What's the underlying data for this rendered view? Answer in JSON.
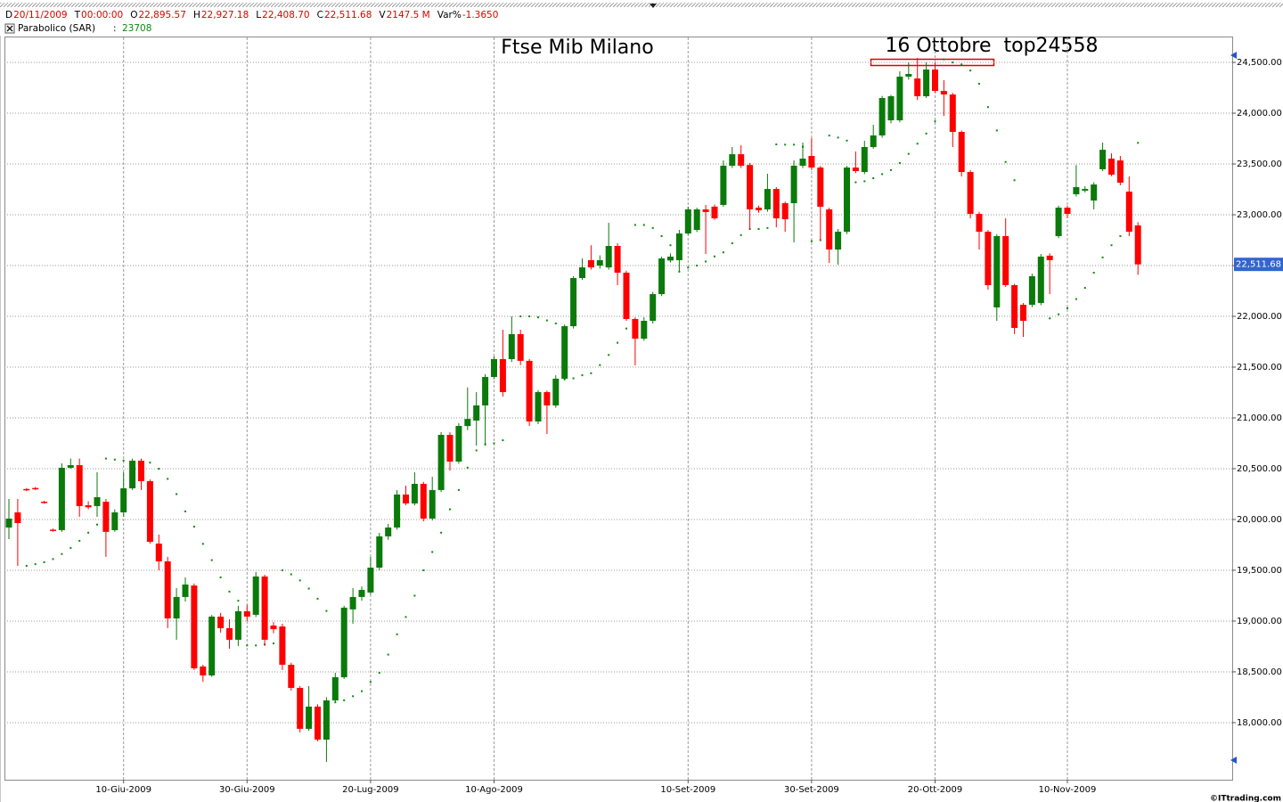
{
  "chart_data": {
    "type": "candlestick",
    "title": "Ftse Mib Milano",
    "annotation": "16 Ottobre  top24558",
    "header": [
      {
        "label": "D",
        "value": "20/11/2009"
      },
      {
        "label": "T",
        "value": "00:00:00"
      },
      {
        "label": "O",
        "value": "22,895.57"
      },
      {
        "label": "H",
        "value": "22,927.18"
      },
      {
        "label": "L",
        "value": "22,408.70"
      },
      {
        "label": "C",
        "value": "22,511.68"
      },
      {
        "label": "V",
        "value": "2147.5 M"
      },
      {
        "label": "Var%",
        "value": "-1.3650"
      }
    ],
    "indicator_separator": ":",
    "copyright": "©ITtrading.com",
    "categories": [
      null,
      null,
      null,
      null,
      null,
      null,
      null,
      null,
      null,
      null,
      null,
      null,
      null,
      "10-Giu-2009",
      null,
      null,
      null,
      null,
      null,
      null,
      null,
      null,
      null,
      null,
      null,
      null,
      null,
      "30-Giu-2009",
      null,
      null,
      null,
      null,
      null,
      null,
      null,
      null,
      null,
      null,
      null,
      null,
      null,
      "20-Lug-2009",
      null,
      null,
      null,
      null,
      null,
      null,
      null,
      null,
      null,
      null,
      null,
      null,
      null,
      "10-Ago-2009",
      null,
      null,
      null,
      null,
      null,
      null,
      null,
      null,
      null,
      null,
      null,
      null,
      null,
      null,
      null,
      null,
      null,
      null,
      null,
      null,
      null,
      "10-Set-2009",
      null,
      null,
      null,
      null,
      null,
      null,
      null,
      null,
      null,
      null,
      null,
      null,
      null,
      "30-Set-2009",
      null,
      null,
      null,
      null,
      null,
      null,
      null,
      null,
      null,
      null,
      null,
      null,
      null,
      "20-Ott-2009",
      null,
      null,
      null,
      null,
      null,
      null,
      null,
      null,
      null,
      null,
      null,
      null,
      null,
      null,
      "10-Nov-2009",
      null,
      null,
      null,
      null,
      null,
      null,
      null,
      null
    ],
    "open": [
      19921,
      20070,
      20300,
      20310,
      20175,
      19900,
      19895,
      20509,
      20535,
      20140,
      20132,
      20175,
      19895,
      20070,
      20307,
      20579,
      20377,
      19763,
      19588,
      19026,
      19237,
      19350,
      18553,
      18465,
      19044,
      18930,
      18816,
      19097,
      19062,
      19439,
      18956,
      18947,
      18570,
      18342,
      17939,
      18158,
      17833,
      18219,
      18447,
      19115,
      19237,
      19281,
      19526,
      19834,
      19921,
      20246,
      20158,
      20351,
      20009,
      20290,
      20833,
      20570,
      20920,
      20974,
      21123,
      21403,
      21579,
      21579,
      21825,
      21562,
      20965,
      21254,
      21123,
      21386,
      21903,
      22377,
      22553,
      22500,
      22482,
      22693,
      22430,
      21974,
      21780,
      21956,
      22219,
      22550,
      22553,
      22816,
      22851,
      23053,
      23080,
      23097,
      23483,
      23596,
      23490,
      23070,
      23053,
      23254,
      23114,
      23114,
      23483,
      23579,
      23465,
      23053,
      22658,
      22833,
      23465,
      23421,
      23667,
      23781,
      23930,
      23930,
      24360,
      24342,
      24167,
      24430,
      24219,
      24184,
      23816,
      23421,
      23009,
      22833,
      22088,
      22790,
      22307,
      22114,
      22114,
      22132,
      22597,
      22790,
      23070,
      23202,
      23237,
      23140,
      23448,
      23553,
      23535,
      23228,
      22895.57
    ],
    "high": [
      20202,
      20202,
      20310,
      20320,
      20185,
      19910,
      20553,
      20600,
      20600,
      20180,
      20465,
      20202,
      20100,
      20465,
      20600,
      20600,
      20395,
      19851,
      19632,
      19325,
      19430,
      19370,
      18570,
      19060,
      19080,
      19018,
      19150,
      19160,
      19483,
      19456,
      18990,
      18974,
      18590,
      18360,
      18360,
      18180,
      18250,
      18491,
      19150,
      19325,
      19340,
      19632,
      19868,
      19956,
      20290,
      20333,
      20465,
      20370,
      20420,
      20860,
      20860,
      20947,
      21300,
      21254,
      21430,
      21605,
      21868,
      22000,
      21868,
      21580,
      21272,
      21270,
      21420,
      21920,
      22395,
      22570,
      22700,
      22600,
      22921,
      22720,
      22450,
      21990,
      21990,
      22240,
      22588,
      22620,
      22851,
      23080,
      23070,
      23097,
      23100,
      23535,
      23667,
      23684,
      23510,
      23090,
      23404,
      23272,
      23130,
      23535,
      23711,
      23754,
      23480,
      23070,
      22860,
      23480,
      23623,
      23728,
      23886,
      24170,
      24180,
      24412,
      24500,
      24544,
      24500,
      24500,
      24325,
      24200,
      23830,
      23440,
      23030,
      22850,
      22810,
      22965,
      22320,
      22130,
      22420,
      22614,
      22620,
      23090,
      23090,
      23490,
      23280,
      23320,
      23711,
      23605,
      23579,
      23377,
      22927.18
    ],
    "low": [
      19807,
      19544,
      20280,
      20290,
      20155,
      19880,
      19878,
      20500,
      20026,
      20100,
      20026,
      19632,
      19880,
      20026,
      20290,
      20290,
      19763,
      19500,
      18930,
      18816,
      19193,
      18518,
      18403,
      18450,
      18886,
      18728,
      18755,
      19000,
      19040,
      18755,
      18880,
      18518,
      18316,
      17904,
      17920,
      17816,
      17614,
      18200,
      18430,
      18974,
      19200,
      19260,
      19500,
      19800,
      19900,
      20140,
      20140,
      19982,
      19990,
      20270,
      20482,
      20550,
      20880,
      20728,
      20728,
      21380,
      21210,
      21550,
      21520,
      20921,
      20940,
      20842,
      21100,
      21370,
      21880,
      22360,
      22460,
      22470,
      22460,
      22307,
      21956,
      21517,
      21760,
      21930,
      22200,
      22530,
      22440,
      22800,
      22830,
      22614,
      22950,
      23080,
      23460,
      23460,
      22851,
      23020,
      23030,
      22877,
      22833,
      22728,
      23460,
      23440,
      22746,
      22526,
      22509,
      22810,
      23410,
      23400,
      23650,
      23760,
      23900,
      23910,
      24330,
      24130,
      24150,
      24200,
      23974,
      23667,
      23377,
      22965,
      22658,
      22263,
      21956,
      22290,
      21825,
      21798,
      22090,
      22110,
      22219,
      22770,
      22965,
      23180,
      23220,
      23053,
      23430,
      23380,
      23290,
      22790,
      22408.7
    ],
    "close": [
      20009,
      19965,
      20290,
      20300,
      20165,
      19890,
      20509,
      20535,
      20132,
      20120,
      20219,
      19878,
      20070,
      20307,
      20579,
      20377,
      19780,
      19588,
      19026,
      19237,
      19360,
      18535,
      18465,
      19044,
      18930,
      18816,
      19097,
      19044,
      19439,
      18816,
      18920,
      18570,
      18342,
      17939,
      18158,
      17833,
      18219,
      18447,
      19132,
      19237,
      19307,
      19526,
      19834,
      19921,
      20246,
      20158,
      20351,
      20009,
      20290,
      20833,
      20570,
      20921,
      20990,
      21123,
      21403,
      21579,
      21254,
      21825,
      21562,
      20965,
      21254,
      21123,
      21386,
      21903,
      22377,
      22482,
      22482,
      22553,
      22693,
      22430,
      21974,
      21780,
      21956,
      22219,
      22570,
      22588,
      22816,
      23053,
      23053,
      23027,
      22965,
      23483,
      23596,
      23483,
      23053,
      23044,
      23254,
      22965,
      22956,
      23483,
      23553,
      23465,
      23079,
      22658,
      22833,
      23465,
      23430,
      23667,
      23781,
      24149,
      24167,
      24360,
      24386,
      24167,
      24430,
      24219,
      24184,
      23816,
      23421,
      23009,
      22833,
      22307,
      22790,
      22307,
      21886,
      21956,
      22395,
      22588,
      22553,
      23070,
      23009,
      23272,
      23254,
      23298,
      23640,
      23395,
      23316,
      22833,
      22511.68
    ],
    "up_color": "#0a7a0a",
    "down_color": "#ff0000",
    "sar": {
      "name": "Parabolico (SAR)",
      "color": "#0a8a0a",
      "values": [
        null,
        null,
        19544,
        19560,
        19580,
        19610,
        19660,
        19720,
        19790,
        19870,
        19950,
        20600,
        20590,
        20580,
        20570,
        20570,
        20560,
        20500,
        20400,
        20250,
        20080,
        19930,
        19760,
        19600,
        19430,
        19290,
        19200,
        18760,
        18760,
        18770,
        18780,
        19500,
        19460,
        19400,
        19320,
        19220,
        19100,
        18200,
        18220,
        18260,
        18310,
        18400,
        18490,
        18670,
        18870,
        19040,
        19250,
        19500,
        19680,
        19870,
        20100,
        20290,
        20510,
        20680,
        20740,
        20750,
        20780,
        null,
        22000,
        22000,
        21990,
        21960,
        21930,
        21380,
        21390,
        21420,
        21440,
        21520,
        21620,
        21740,
        21880,
        22900,
        22900,
        22870,
        22790,
        22700,
        22440,
        22480,
        22500,
        22540,
        22590,
        22630,
        22720,
        22800,
        22860,
        22860,
        22870,
        23693,
        23690,
        23690,
        23670,
        22740,
        22750,
        23780,
        23760,
        23730,
        23320,
        23330,
        23360,
        23400,
        23440,
        23510,
        23600,
        23700,
        23800,
        23920,
        24530,
        24500,
        24480,
        24420,
        24290,
        24060,
        23830,
        23520,
        23340,
        null,
        null,
        null,
        21980,
        22020,
        22080,
        22170,
        22280,
        22430,
        22580,
        22700,
        22790,
        22880,
        23708
      ]
    },
    "last_label": {
      "value": 22511.68,
      "label": "22,511.68"
    },
    "ylim": [
      17438,
      24746
    ],
    "yticks": [
      {
        "value": 18000,
        "label": "18,000.00"
      },
      {
        "value": 18500,
        "label": "18,500.00"
      },
      {
        "value": 19000,
        "label": "19,000.00"
      },
      {
        "value": 19500,
        "label": "19,500.00"
      },
      {
        "value": 20000,
        "label": "20,000.00"
      },
      {
        "value": 20500,
        "label": "20,500.00"
      },
      {
        "value": 21000,
        "label": "21,000.00"
      },
      {
        "value": 21500,
        "label": "21,500.00"
      },
      {
        "value": 22000,
        "label": "22,000.00"
      },
      {
        "value": 22500,
        "label": "22,500.00"
      },
      {
        "value": 23000,
        "label": "23,000.00"
      },
      {
        "value": 23500,
        "label": "23,500.00"
      },
      {
        "value": 24000,
        "label": "24,000.00"
      },
      {
        "value": 24500,
        "label": "24,500.00"
      }
    ],
    "grid": true
  }
}
